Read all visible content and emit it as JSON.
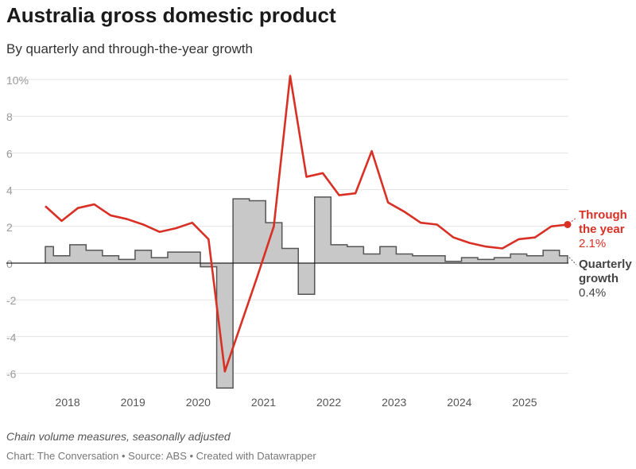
{
  "title": "Australia gross domestic product",
  "subtitle": "By quarterly and through-the-year growth",
  "notes": "Chain volume measures, seasonally adjusted",
  "byline": "Chart: The Conversation • Source: ABS • Created with Datawrapper",
  "chart_data": {
    "type": "line+step-area",
    "ylim": [
      -7,
      10.5
    ],
    "yticks": [
      10,
      8,
      6,
      4,
      2,
      0,
      -2,
      -4,
      -6
    ],
    "ytick_labels": [
      "10%",
      "8",
      "6",
      "4",
      "2",
      "0",
      "-2",
      "-4",
      "-6"
    ],
    "xtick_labels": [
      "2018",
      "2019",
      "2020",
      "2021",
      "2022",
      "2023",
      "2024",
      "2025"
    ],
    "grid": true,
    "colors": {
      "through_the_year": "#d93025",
      "quarterly": "#c8c8c8",
      "quarterly_stroke": "#555555"
    },
    "series": [
      {
        "name": "Through the year",
        "label_line1": "Through",
        "label_line2": "the year",
        "last_value_label": "2.1%",
        "values": [
          3.1,
          2.3,
          3.0,
          3.2,
          2.6,
          2.4,
          2.1,
          1.7,
          1.9,
          2.2,
          1.3,
          -5.9,
          -3.3,
          -0.7,
          2.0,
          10.2,
          4.7,
          4.9,
          3.7,
          3.8,
          6.1,
          3.3,
          2.8,
          2.2,
          2.1,
          1.4,
          1.1,
          0.9,
          0.8,
          1.3,
          1.4,
          2.0,
          2.1
        ]
      },
      {
        "name": "Quarterly growth",
        "label_line1": "Quarterly",
        "label_line2": "growth",
        "last_value_label": "0.4%",
        "values": [
          0.9,
          0.4,
          1.0,
          0.7,
          0.4,
          0.2,
          0.7,
          0.3,
          0.6,
          0.6,
          -0.2,
          -6.8,
          3.5,
          3.4,
          2.2,
          0.8,
          -1.7,
          3.6,
          1.0,
          0.9,
          0.5,
          0.9,
          0.5,
          0.4,
          0.4,
          0.1,
          0.3,
          0.2,
          0.3,
          0.5,
          0.4,
          0.7,
          0.4
        ]
      }
    ]
  }
}
